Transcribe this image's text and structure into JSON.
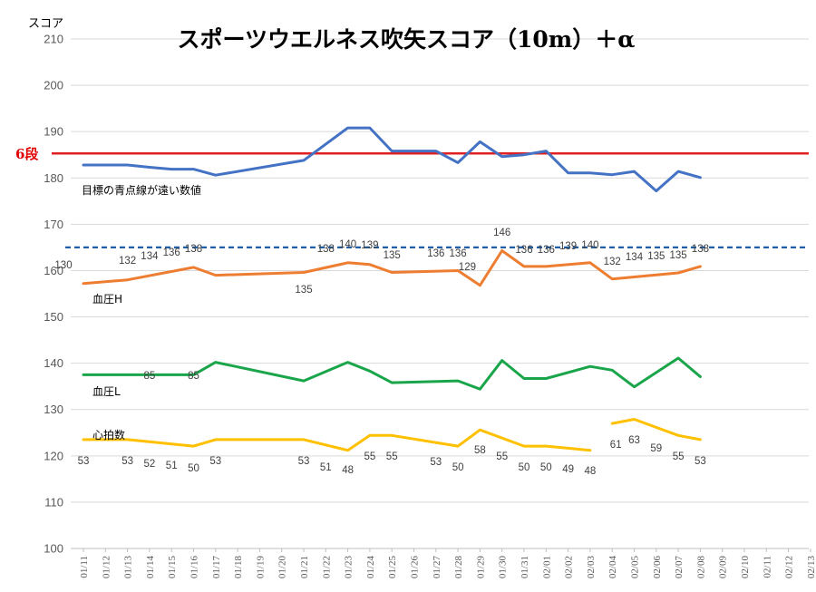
{
  "chart_data": {
    "type": "line",
    "title": "スポーツウエルネス吹矢スコア（10m）＋α",
    "ylabel": "スコア",
    "ylim": [
      100,
      210
    ],
    "yticks": [
      100,
      110,
      120,
      130,
      140,
      150,
      160,
      170,
      180,
      190,
      200,
      210
    ],
    "grid": true,
    "categories": [
      "01/11",
      "01/12",
      "01/13",
      "01/14",
      "01/15",
      "01/16",
      "01/17",
      "01/18",
      "01/19",
      "01/20",
      "01/21",
      "01/22",
      "01/23",
      "01/24",
      "01/25",
      "01/26",
      "01/27",
      "01/28",
      "01/29",
      "01/30",
      "01/31",
      "02/01",
      "02/02",
      "02/03",
      "02/04",
      "02/05",
      "02/06",
      "02/07",
      "02/08",
      "02/09",
      "02/10",
      "02/11",
      "02/12",
      "02/13"
    ],
    "series": [
      {
        "key": "score",
        "color": "#4472c4",
        "label_text": "目標の青点線が遠い数値",
        "values": [
          182.8,
          182.8,
          182.8,
          182.3,
          181.9,
          181.9,
          180.6,
          null,
          null,
          null,
          183.8,
          null,
          190.8,
          190.8,
          185.8,
          185.8,
          185.8,
          183.3,
          187.8,
          184.6,
          185.0,
          185.8,
          181.1,
          181.1,
          180.7,
          181.4,
          177.2,
          181.4,
          180.1,
          null,
          null,
          null,
          null,
          null
        ],
        "point_labels": []
      },
      {
        "key": "systolic",
        "color": "#ed7d31",
        "label_text": "血圧H",
        "values": [
          157.2,
          null,
          158.0,
          null,
          null,
          160.7,
          159.0,
          null,
          null,
          null,
          159.6,
          null,
          161.7,
          161.3,
          159.6,
          null,
          null,
          160.0,
          156.8,
          164.3,
          160.9,
          160.9,
          null,
          161.7,
          158.2,
          null,
          null,
          159.5,
          160.9,
          null,
          null,
          null,
          null,
          null
        ],
        "point_labels": [
          "130",
          null,
          "132",
          "134",
          "136",
          "138",
          null,
          null,
          null,
          null,
          "135",
          "138",
          "140",
          "139",
          "135",
          null,
          "136",
          "136",
          "129",
          "146",
          "136",
          "136",
          "139",
          "140",
          "132",
          "134",
          "135",
          "135",
          "138",
          null,
          null,
          null,
          null,
          null
        ]
      },
      {
        "key": "diastolic",
        "color": "#1aa54a",
        "label_text": "血圧L",
        "values": [
          137.5,
          null,
          null,
          null,
          null,
          137.5,
          140.2,
          null,
          null,
          null,
          136.2,
          null,
          140.2,
          138.3,
          135.8,
          null,
          null,
          136.2,
          134.4,
          140.6,
          136.7,
          136.7,
          null,
          139.3,
          138.5,
          134.9,
          null,
          141.1,
          137.1,
          null,
          null,
          null,
          null,
          null
        ],
        "point_labels": [
          null,
          null,
          null,
          "85",
          null,
          "85",
          null,
          null,
          null,
          null,
          null,
          null,
          null,
          null,
          null,
          null,
          null,
          null,
          null,
          null,
          null,
          null,
          null,
          null,
          null,
          null,
          null,
          null,
          null,
          null,
          null,
          null,
          null,
          null
        ]
      },
      {
        "key": "pulse",
        "color": "#ffc000",
        "label_text": "心拍数",
        "values": [
          123.5,
          null,
          123.5,
          null,
          null,
          122.1,
          123.5,
          null,
          null,
          null,
          123.5,
          null,
          121.2,
          124.4,
          124.4,
          null,
          null,
          122.1,
          125.6,
          null,
          122.1,
          122.1,
          null,
          121.2,
          127.0,
          127.9,
          null,
          124.4,
          123.5,
          null,
          null,
          null,
          null,
          null
        ],
        "gap_after_index": 23,
        "point_labels": [
          "53",
          null,
          "53",
          "52",
          "51",
          "50",
          "53",
          null,
          null,
          null,
          "53",
          "51",
          "48",
          "55",
          "55",
          null,
          "53",
          "50",
          "58",
          "55",
          "50",
          "50",
          "49",
          "48",
          "61",
          "63",
          "59",
          "55",
          "53",
          null,
          null,
          null,
          null,
          null
        ]
      }
    ],
    "reference_lines": [
      {
        "key": "rank_line",
        "value": 185.3,
        "color": "#e02020",
        "style": "solid",
        "label": "6段"
      },
      {
        "key": "target_line",
        "value": 165.0,
        "color": "#1f5fa8",
        "style": "dashed",
        "label": ""
      }
    ]
  }
}
